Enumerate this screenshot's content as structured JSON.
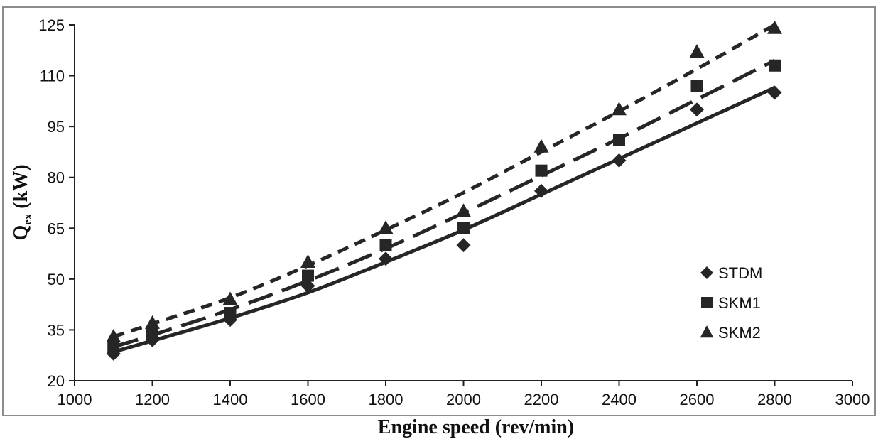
{
  "chart_data": {
    "type": "scatter",
    "xlabel": "Engine speed (rev/min)",
    "ylabel": {
      "main": "Q",
      "sub": "ex",
      "rest": " (kW)"
    },
    "xlim": [
      1000,
      3000
    ],
    "ylim": [
      20,
      125
    ],
    "xticks": [
      1000,
      1200,
      1400,
      1600,
      1800,
      2000,
      2200,
      2400,
      2600,
      2800,
      3000
    ],
    "yticks": [
      20,
      35,
      50,
      65,
      80,
      95,
      110,
      125
    ],
    "grid": false,
    "legend_position": "right",
    "x": [
      1100,
      1200,
      1400,
      1600,
      1800,
      2000,
      2200,
      2400,
      2600,
      2800
    ],
    "series": [
      {
        "name": "STDM",
        "marker": "diamond",
        "line_style": "solid",
        "values": [
          28,
          32,
          38,
          48,
          56,
          60,
          76,
          85,
          100,
          105
        ],
        "trend": [
          28.5,
          31.8,
          38.5,
          46.0,
          55.0,
          64.5,
          75.0,
          85.5,
          96.0,
          106.5
        ]
      },
      {
        "name": "SKM1",
        "marker": "square",
        "line_style": "long-dash",
        "values": [
          30,
          34,
          40,
          51,
          60,
          65,
          82,
          91,
          107,
          113
        ],
        "trend": [
          30.0,
          33.5,
          41.0,
          49.5,
          59.0,
          69.5,
          80.5,
          91.5,
          103.0,
          114.5
        ]
      },
      {
        "name": "SKM2",
        "marker": "triangle",
        "line_style": "short-dash",
        "values": [
          33,
          37,
          44,
          55,
          65,
          70,
          89,
          100,
          117,
          124
        ],
        "trend": [
          33.0,
          36.8,
          44.5,
          54.0,
          64.5,
          75.5,
          87.5,
          99.5,
          112.0,
          125.0
        ]
      }
    ],
    "colors": {
      "marker": "#262626",
      "line": "#262626",
      "frame": "#8c8c8c"
    }
  }
}
